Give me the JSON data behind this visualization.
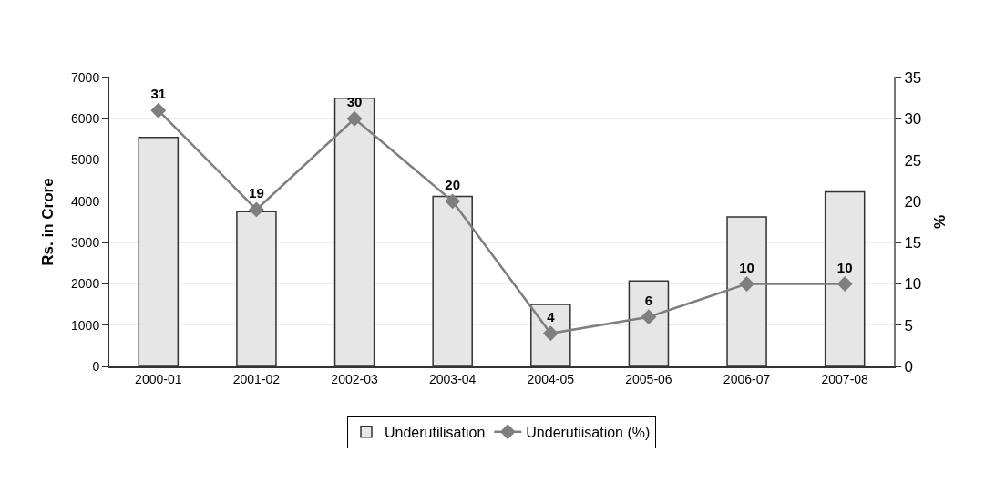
{
  "chart_data": {
    "type": "bar",
    "categories": [
      "2000-01",
      "2001-02",
      "2002-03",
      "2003-04",
      "2004-05",
      "2005-06",
      "2006-07",
      "2007-08"
    ],
    "ylabel": "Rs. in Crore",
    "y2label": "%",
    "series": [
      {
        "name": "Underutilisation",
        "color": "#e6e6e6",
        "values": [
          5550,
          3750,
          6500,
          4120,
          1500,
          2070,
          3620,
          4230
        ]
      },
      {
        "name": "Underutiisation (%)",
        "type": "line",
        "axis": "y2",
        "color": "#7f7f7f",
        "values": [
          31,
          19,
          30,
          20,
          4,
          6,
          10,
          10
        ],
        "data_labels": true,
        "marker": "diamond"
      }
    ],
    "ylim": [
      0,
      7000
    ],
    "yticks": [
      0,
      1000,
      2000,
      3000,
      4000,
      5000,
      6000,
      7000
    ],
    "y2lim": [
      0,
      35
    ],
    "y2ticks": [
      0,
      5,
      10,
      15,
      20,
      25,
      30,
      35
    ],
    "grid": "y",
    "legend": "bottom"
  }
}
